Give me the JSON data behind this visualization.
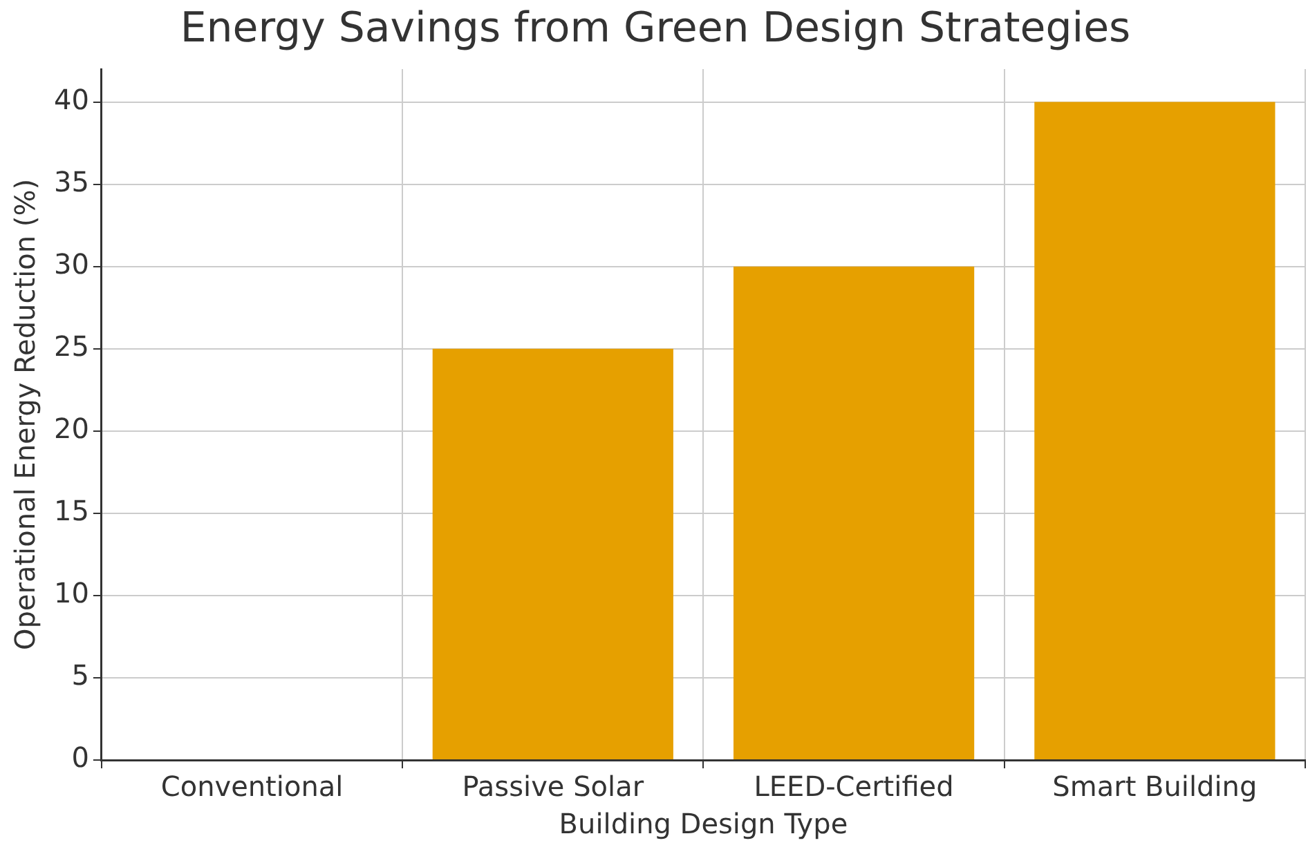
{
  "chart_data": {
    "type": "bar",
    "title": "Energy Savings from Green Design Strategies",
    "xlabel": "Building Design Type",
    "ylabel": "Operational Energy Reduction (%)",
    "categories": [
      "Conventional",
      "Passive Solar",
      "LEED-Certified",
      "Smart Building"
    ],
    "values": [
      0,
      25,
      30,
      40
    ],
    "color": "#e6a000",
    "ylim": [
      0,
      42
    ],
    "yticks": [
      0,
      5,
      10,
      15,
      20,
      25,
      30,
      35,
      40
    ],
    "grid": true
  }
}
